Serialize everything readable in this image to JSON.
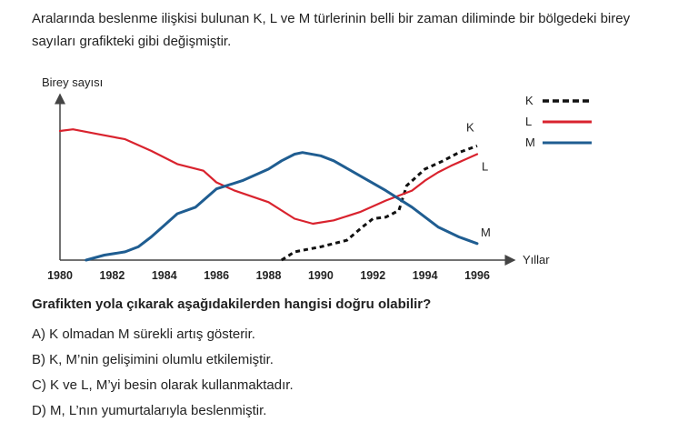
{
  "intro_text": "Aralarında beslenme ilişkisi bulunan K, L ve M türlerinin belli bir zaman diliminde bir bölgedeki birey sayıları grafikteki gibi değişmiştir.",
  "question": "Grafikten yola çıkarak aşağıdakilerden hangisi doğru olabilir?",
  "options": [
    {
      "letter": "A)",
      "text": "K olmadan M sürekli artış gösterir."
    },
    {
      "letter": "B)",
      "text": "K, M’nin gelişimini olumlu etkilemiştir."
    },
    {
      "letter": "C)",
      "text": "K ve L, M’yi besin olarak kullanmaktadır."
    },
    {
      "letter": "D)",
      "text": "M, L’nın yumurtalarıyla beslenmiştir."
    }
  ],
  "chart_data": {
    "type": "line",
    "ylabel": "Birey sayısı",
    "xlabel": "Yıllar",
    "xlim": [
      1980,
      1996
    ],
    "x_ticks": [
      "1980",
      "1982",
      "1984",
      "1986",
      "1988",
      "1990",
      "1992",
      "1994",
      "1996"
    ],
    "ylim": [
      0,
      100
    ],
    "grid": false,
    "legend": "top-right",
    "series": [
      {
        "name": "K",
        "color": "#111111",
        "style": "dashed",
        "end_label": "K",
        "points": [
          [
            1988.5,
            0
          ],
          [
            1989,
            5
          ],
          [
            1990,
            8
          ],
          [
            1991,
            12
          ],
          [
            1991.6,
            20
          ],
          [
            1992,
            25
          ],
          [
            1992.5,
            26
          ],
          [
            1993,
            30
          ],
          [
            1993.3,
            45
          ],
          [
            1994,
            55
          ],
          [
            1994.7,
            60
          ],
          [
            1995.3,
            65
          ],
          [
            1996,
            69
          ]
        ]
      },
      {
        "name": "L",
        "color": "#d9232e",
        "style": "solid",
        "end_label": "L",
        "points": [
          [
            1980,
            78
          ],
          [
            1980.5,
            79
          ],
          [
            1981.5,
            76
          ],
          [
            1982.5,
            73
          ],
          [
            1983.5,
            66
          ],
          [
            1984.5,
            58
          ],
          [
            1985.5,
            54
          ],
          [
            1986,
            47
          ],
          [
            1986.7,
            42
          ],
          [
            1988,
            35
          ],
          [
            1989,
            25
          ],
          [
            1989.7,
            22
          ],
          [
            1990.5,
            24
          ],
          [
            1991.5,
            29
          ],
          [
            1992.5,
            36
          ],
          [
            1993.5,
            42
          ],
          [
            1994,
            48
          ],
          [
            1994.5,
            53
          ],
          [
            1995,
            57
          ],
          [
            1996,
            64
          ]
        ]
      },
      {
        "name": "M",
        "color": "#1f5d91",
        "style": "solid",
        "end_label": "M",
        "points": [
          [
            1981,
            0
          ],
          [
            1981.7,
            3
          ],
          [
            1982.5,
            5
          ],
          [
            1983,
            8
          ],
          [
            1983.5,
            14
          ],
          [
            1984,
            21
          ],
          [
            1984.5,
            28
          ],
          [
            1985.2,
            32
          ],
          [
            1986,
            43
          ],
          [
            1987,
            48
          ],
          [
            1988,
            55
          ],
          [
            1988.5,
            60
          ],
          [
            1989,
            64
          ],
          [
            1989.3,
            65
          ],
          [
            1990,
            63
          ],
          [
            1990.5,
            60
          ],
          [
            1991.5,
            51
          ],
          [
            1992.5,
            42
          ],
          [
            1993.5,
            32
          ],
          [
            1994.5,
            20
          ],
          [
            1995.3,
            14
          ],
          [
            1996,
            10
          ]
        ]
      }
    ]
  }
}
